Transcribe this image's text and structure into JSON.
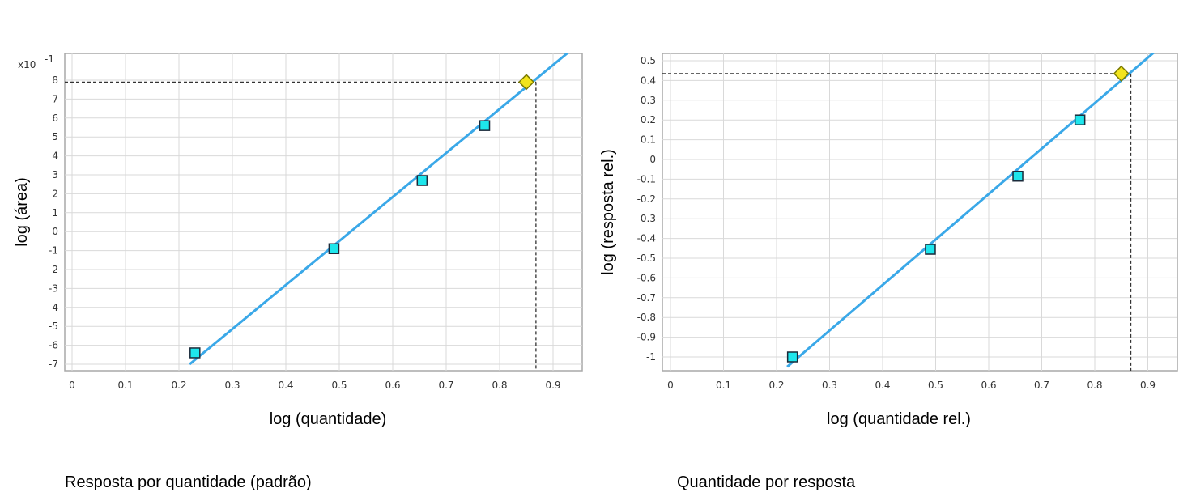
{
  "captions": {
    "left": "Resposta por quantidade (padrão)",
    "right": "Quantidade por resposta"
  },
  "colors": {
    "line": "#3aa8e8",
    "standard_marker_fill": "#1ee6ec",
    "unknown_marker_fill": "#f2e41c",
    "grid": "#d9d9d9",
    "dashed_guide": "#333333"
  },
  "chart_data": [
    {
      "type": "scatter",
      "xlabel": "log (quantidade)",
      "ylabel": "log (área)",
      "y_multiplier_label": "x10",
      "y_multiplier_exponent": "-1",
      "xlim": [
        0,
        0.95
      ],
      "ylim": [
        -7,
        9
      ],
      "xticks": [
        "0",
        "0.1",
        "0.2",
        "0.3",
        "0.4",
        "0.5",
        "0.6",
        "0.7",
        "0.8",
        "0.9"
      ],
      "yticks": [
        "8",
        "7",
        "6",
        "5",
        "4",
        "3",
        "2",
        "1",
        "0",
        "-1",
        "-2",
        "-3",
        "-4",
        "-5",
        "-6",
        "-7"
      ],
      "grid": true,
      "series": [
        {
          "marker": "square",
          "x": [
            0.23,
            0.49,
            0.655,
            0.772
          ],
          "y": [
            -6.4,
            -0.9,
            2.7,
            5.6
          ]
        },
        {
          "marker": "diamond",
          "x": [
            0.85
          ],
          "y": [
            7.9
          ]
        }
      ],
      "fit_line": {
        "x": [
          0.22,
          0.93
        ],
        "y": [
          -7.0,
          9.5
        ]
      },
      "guide": {
        "x": 0.868,
        "y": 7.9
      }
    },
    {
      "type": "scatter",
      "xlabel": "log (quantidade rel.)",
      "ylabel": "log (resposta rel.)",
      "xlim": [
        0,
        0.95
      ],
      "ylim": [
        -1.05,
        0.55
      ],
      "xticks": [
        "0",
        "0.1",
        "0.2",
        "0.3",
        "0.4",
        "0.5",
        "0.6",
        "0.7",
        "0.8",
        "0.9"
      ],
      "yticks": [
        "0.5",
        "0.4",
        "0.3",
        "0.2",
        "0.1",
        "0",
        "-0.1",
        "-0.2",
        "-0.3",
        "-0.4",
        "-0.5",
        "-0.6",
        "-0.7",
        "-0.8",
        "-0.9",
        "-1"
      ],
      "grid": true,
      "series": [
        {
          "marker": "square",
          "x": [
            0.23,
            0.49,
            0.655,
            0.772
          ],
          "y": [
            -1.0,
            -0.455,
            -0.085,
            0.2
          ]
        },
        {
          "marker": "diamond",
          "x": [
            0.85
          ],
          "y": [
            0.435
          ]
        }
      ],
      "fit_line": {
        "x": [
          0.22,
          0.915
        ],
        "y": [
          -1.05,
          0.55
        ]
      },
      "guide": {
        "x": 0.868,
        "y": 0.435
      }
    }
  ]
}
